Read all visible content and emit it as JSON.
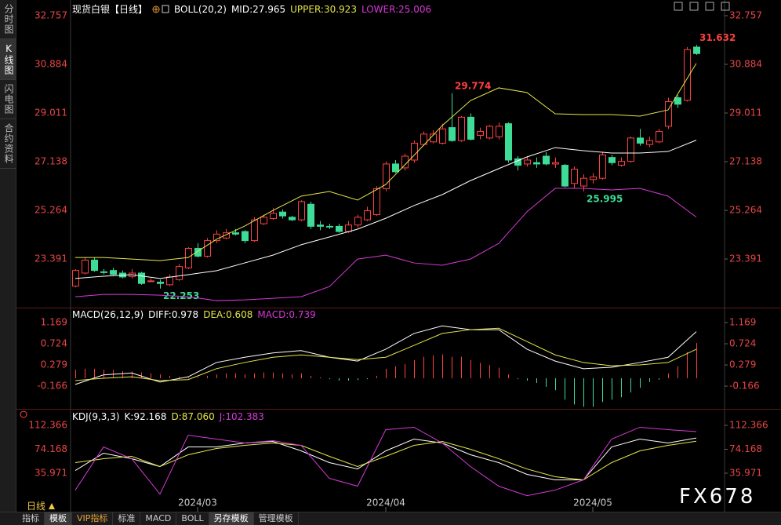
{
  "ui": {
    "side_tabs": [
      "分时图",
      "K线图",
      "闪电图",
      "合约资料"
    ],
    "bottom_tabs": [
      "指标",
      "模板",
      "VIP指标",
      "标准",
      "MACD",
      "BOLL",
      "另存模板",
      "管理模板"
    ],
    "period": "日线",
    "watermark": "FX678"
  },
  "chart_data": [
    {
      "type": "candlestick",
      "title": "现货白银【日线】",
      "indicator": "BOLL(20,2)",
      "up_color": "#ff4040",
      "down_color": "#3ddc97",
      "ylim": [
        21.52,
        33.12
      ],
      "yticks": [
        23.391,
        25.264,
        27.138,
        29.011,
        30.884,
        32.757
      ],
      "open": [
        22.35,
        22.85,
        23.35,
        22.9,
        22.95,
        22.85,
        22.72,
        22.85,
        22.55,
        22.5,
        22.4,
        22.6,
        23.05,
        23.8,
        23.5,
        24.1,
        24.2,
        24.4,
        24.45,
        24.1,
        24.75,
        24.95,
        25.2,
        25.0,
        24.9,
        25.5,
        24.7,
        24.65,
        24.65,
        24.45,
        24.7,
        24.9,
        25.1,
        26.1,
        27.05,
        26.9,
        27.2,
        27.8,
        27.9,
        27.85,
        28.45,
        27.95,
        28.85,
        28.15,
        28.05,
        28.1,
        28.6,
        27.25,
        27.05,
        27.1,
        27.35,
        27.05,
        27.0,
        26.3,
        26.2,
        26.45,
        26.5,
        27.3,
        27.0,
        27.15,
        28.05,
        27.8,
        27.9,
        28.5,
        29.6,
        29.5,
        31.55
      ],
      "high": [
        23.0,
        23.45,
        23.45,
        23.0,
        23.05,
        22.95,
        23.0,
        22.9,
        22.65,
        22.6,
        22.8,
        23.2,
        23.85,
        24.0,
        24.2,
        24.5,
        24.55,
        24.55,
        24.5,
        25.0,
        25.1,
        25.35,
        25.3,
        25.05,
        25.65,
        25.6,
        24.85,
        24.75,
        24.75,
        24.85,
        25.1,
        25.4,
        26.2,
        27.15,
        27.2,
        27.45,
        27.95,
        28.3,
        28.35,
        28.6,
        29.774,
        28.9,
        29.0,
        28.45,
        28.55,
        28.65,
        28.65,
        27.35,
        27.35,
        27.3,
        27.5,
        27.3,
        27.05,
        26.95,
        26.65,
        26.7,
        27.5,
        27.4,
        27.3,
        28.1,
        28.4,
        28.1,
        28.4,
        29.6,
        29.7,
        31.55,
        31.632
      ],
      "low": [
        22.3,
        22.8,
        22.9,
        22.8,
        22.75,
        22.65,
        22.65,
        22.4,
        22.5,
        22.253,
        22.35,
        22.55,
        23.0,
        23.45,
        23.45,
        24.0,
        24.15,
        24.3,
        24.0,
        24.05,
        24.7,
        24.9,
        24.95,
        24.85,
        24.85,
        24.55,
        24.5,
        24.55,
        24.4,
        24.4,
        24.6,
        24.85,
        25.05,
        26.0,
        26.7,
        26.8,
        27.1,
        27.75,
        27.85,
        27.8,
        27.9,
        27.9,
        27.95,
        28.0,
        28.0,
        28.0,
        27.1,
        26.8,
        26.95,
        26.9,
        27.0,
        26.9,
        26.15,
        26.1,
        25.995,
        26.3,
        26.45,
        27.0,
        26.95,
        27.1,
        27.75,
        27.7,
        27.85,
        28.4,
        29.2,
        29.45,
        31.25
      ],
      "close": [
        22.95,
        23.35,
        22.95,
        22.88,
        22.8,
        22.7,
        22.85,
        22.45,
        22.55,
        22.45,
        22.7,
        23.1,
        23.8,
        23.5,
        24.1,
        24.35,
        24.4,
        24.35,
        24.1,
        24.9,
        25.0,
        25.15,
        25.05,
        24.9,
        25.6,
        24.65,
        24.65,
        24.62,
        24.45,
        24.7,
        25.0,
        25.25,
        26.1,
        27.05,
        26.75,
        27.35,
        27.85,
        28.2,
        28.2,
        28.4,
        27.95,
        28.85,
        28.0,
        28.3,
        28.5,
        28.5,
        27.2,
        27.0,
        27.2,
        27.05,
        27.05,
        27.1,
        26.2,
        26.85,
        26.5,
        26.55,
        27.4,
        27.1,
        27.15,
        28.05,
        27.85,
        27.95,
        28.3,
        29.45,
        29.35,
        31.45,
        31.3
      ],
      "line_x": [
        0,
        3,
        6,
        9,
        12,
        15,
        18,
        21,
        24,
        27,
        30,
        33,
        36,
        39,
        42,
        45,
        48,
        51,
        54,
        57,
        60,
        63,
        66
      ],
      "series": [
        {
          "name": "MID:27.965",
          "color": "#ffffff",
          "values": [
            22.64,
            22.73,
            22.79,
            22.64,
            22.79,
            22.94,
            23.24,
            23.54,
            23.94,
            24.24,
            24.54,
            24.96,
            25.45,
            25.87,
            26.41,
            26.87,
            27.32,
            27.68,
            27.56,
            27.47,
            27.47,
            27.53,
            27.965
          ]
        },
        {
          "name": "UPPER:30.923",
          "color": "#e6e64a",
          "values": [
            23.45,
            23.45,
            23.39,
            23.33,
            23.45,
            24.15,
            24.66,
            25.26,
            25.81,
            25.99,
            25.66,
            26.26,
            27.38,
            28.53,
            29.49,
            29.98,
            29.8,
            28.98,
            28.95,
            28.95,
            28.89,
            29.13,
            30.923
          ]
        },
        {
          "name": "LOWER:25.006",
          "color": "#d63ad6",
          "values": [
            21.94,
            22.03,
            22.03,
            22.0,
            21.94,
            21.79,
            21.82,
            21.88,
            21.94,
            22.33,
            23.39,
            23.54,
            23.24,
            23.15,
            23.39,
            23.99,
            25.21,
            26.11,
            26.11,
            26.05,
            26.11,
            25.81,
            25.006
          ]
        }
      ],
      "annotations": [
        {
          "x": 66,
          "value": 31.632,
          "color": "#ff4040"
        },
        {
          "x": 40,
          "value": 29.774,
          "color": "#ff4040"
        },
        {
          "x": 9,
          "value": 22.253,
          "color": "#3ddc97"
        },
        {
          "x": 54,
          "value": 25.995,
          "color": "#3ddc97"
        }
      ]
    },
    {
      "type": "macd",
      "title": "MACD(26,12,9)",
      "up_color": "#ff4040",
      "down_color": "#3ddc97",
      "ylim": [
        -0.627,
        1.466
      ],
      "yticks": [
        -0.166,
        0.279,
        0.724,
        1.169
      ],
      "line_x": [
        0,
        3,
        6,
        9,
        12,
        15,
        18,
        21,
        24,
        27,
        30,
        33,
        36,
        39,
        42,
        45,
        48,
        51,
        54,
        57,
        60,
        63,
        66
      ],
      "series": [
        {
          "name": "DIFF:0.978",
          "color": "#ffffff",
          "values": [
            -0.13,
            0.07,
            0.11,
            -0.08,
            0.03,
            0.33,
            0.44,
            0.53,
            0.58,
            0.44,
            0.36,
            0.61,
            0.94,
            1.1,
            1.02,
            1.02,
            0.61,
            0.36,
            0.2,
            0.23,
            0.33,
            0.44,
            0.978
          ]
        },
        {
          "name": "DEA:0.608",
          "color": "#e6e64a",
          "values": [
            -0.05,
            0.0,
            0.03,
            -0.05,
            -0.03,
            0.2,
            0.33,
            0.44,
            0.49,
            0.44,
            0.39,
            0.44,
            0.69,
            0.94,
            1.02,
            1.05,
            0.77,
            0.49,
            0.33,
            0.26,
            0.28,
            0.33,
            0.608
          ]
        }
      ],
      "histogram": {
        "name": "MACD:0.739",
        "color": "#d63ad6",
        "values": [
          0.18,
          0.2,
          0.2,
          0.18,
          0.17,
          0.15,
          0.14,
          0.12,
          0.1,
          0.08,
          0.05,
          0.03,
          0.02,
          0.02,
          0.05,
          0.08,
          0.1,
          0.1,
          0.08,
          0.1,
          0.12,
          0.12,
          0.1,
          0.08,
          0.1,
          0.05,
          0.02,
          -0.02,
          -0.05,
          -0.05,
          -0.04,
          -0.02,
          0.05,
          0.2,
          0.25,
          0.3,
          0.38,
          0.45,
          0.48,
          0.5,
          0.45,
          0.45,
          0.38,
          0.32,
          0.28,
          0.22,
          0.08,
          -0.02,
          -0.05,
          -0.1,
          -0.18,
          -0.25,
          -0.45,
          -0.55,
          -0.6,
          -0.6,
          -0.5,
          -0.45,
          -0.4,
          -0.3,
          -0.2,
          -0.08,
          -0.03,
          0.1,
          0.25,
          0.55,
          0.739
        ]
      }
    },
    {
      "type": "kdj",
      "title": "KDJ(9,3,3)",
      "ylim": [
        -25.4,
        136.2
      ],
      "yticks": [
        35.971,
        74.168,
        112.366
      ],
      "xticks": [
        {
          "value": 13,
          "label": "2024/03"
        },
        {
          "value": 33,
          "label": "2024/04"
        },
        {
          "value": 55,
          "label": "2024/05"
        }
      ],
      "line_x": [
        0,
        3,
        6,
        9,
        12,
        15,
        18,
        21,
        24,
        27,
        30,
        33,
        36,
        39,
        42,
        45,
        48,
        51,
        54,
        57,
        60,
        63,
        66
      ],
      "series": [
        {
          "name": "K:92.168",
          "color": "#ffffff",
          "values": [
            40.3,
            67.9,
            59.1,
            46.6,
            77.9,
            77.9,
            84.2,
            86.7,
            71.7,
            52.9,
            42.8,
            71.7,
            90.5,
            84.2,
            65.4,
            52.9,
            34.1,
            25.3,
            25.3,
            77.9,
            90.5,
            84.2,
            92.168
          ]
        },
        {
          "name": "D:87.060",
          "color": "#e6e64a",
          "values": [
            52.9,
            59.1,
            62.9,
            46.6,
            65.4,
            75.4,
            80.4,
            84.2,
            80.4,
            62.9,
            46.6,
            62.9,
            80.4,
            86.7,
            74.2,
            59.1,
            42.8,
            30.3,
            25.3,
            52.9,
            71.7,
            80.4,
            87.06
          ]
        },
        {
          "name": "J:102.383",
          "color": "#d63ad6",
          "values": [
            9.0,
            77.9,
            59.1,
            2.7,
            96.7,
            90.5,
            84.2,
            88.0,
            80.4,
            27.8,
            15.3,
            105.5,
            109.3,
            84.2,
            46.6,
            15.3,
            0.2,
            9.0,
            25.3,
            90.5,
            109.3,
            105.5,
            102.383
          ]
        }
      ]
    }
  ]
}
